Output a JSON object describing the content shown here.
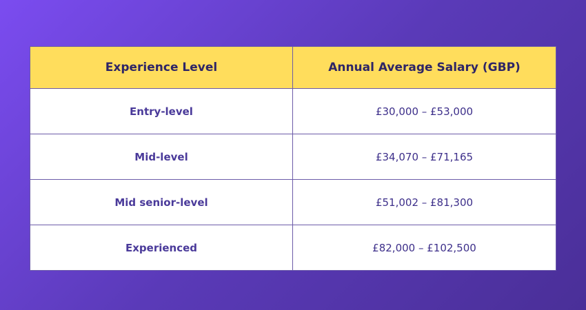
{
  "table": {
    "header": [
      "Experience Level",
      "Annual Average Salary (GBP)"
    ],
    "rows": [
      [
        "Entry-level",
        "£30,000 – £53,000"
      ],
      [
        "Mid-level",
        "£34,070 – £71,165"
      ],
      [
        "Mid senior-level",
        "£51,002 – £81,300"
      ],
      [
        "Experienced",
        "£82,000 – £102,500"
      ]
    ]
  }
}
